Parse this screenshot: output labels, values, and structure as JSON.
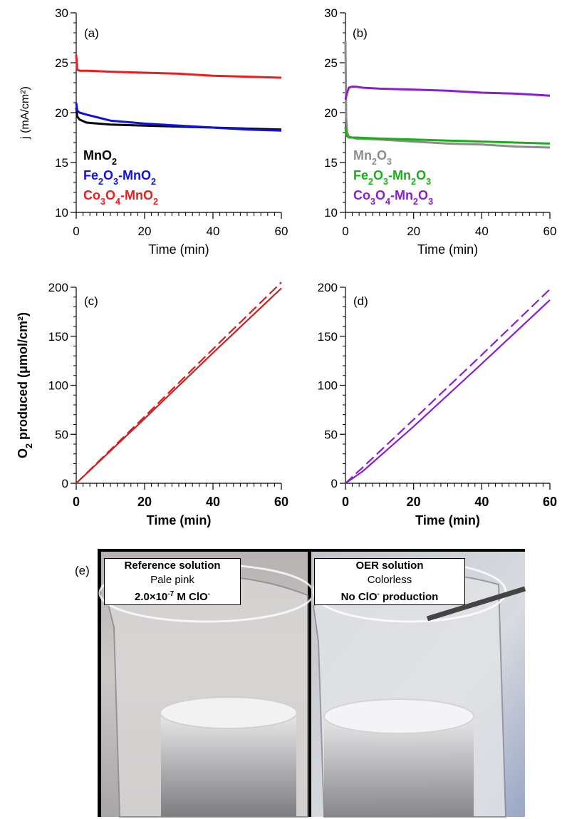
{
  "chart_data": [
    {
      "panel": "(a)",
      "type": "line",
      "xlabel": "Time (min)",
      "ylabel": "j (mA/cm²)",
      "xlim": [
        0,
        60
      ],
      "ylim": [
        10,
        30
      ],
      "xticks": [
        0,
        20,
        40,
        60
      ],
      "yticks": [
        10,
        15,
        20,
        25,
        30
      ],
      "legend_placement": "bottom-left",
      "series": [
        {
          "name": "MnO₂",
          "color": "#000000",
          "x": [
            0,
            0.3,
            1,
            3,
            10,
            20,
            30,
            40,
            50,
            60
          ],
          "y": [
            20.5,
            19.6,
            19.3,
            19.0,
            18.8,
            18.7,
            18.6,
            18.5,
            18.4,
            18.3
          ]
        },
        {
          "name": "Fe₂O₃-MnO₂",
          "color": "#1010e0",
          "x": [
            0,
            0.3,
            1,
            3,
            10,
            20,
            30,
            40,
            50,
            60
          ],
          "y": [
            21.0,
            20.2,
            20.0,
            19.8,
            19.2,
            18.9,
            18.7,
            18.5,
            18.3,
            18.2
          ]
        },
        {
          "name": "Co₃O₄-MnO₂",
          "color": "#ee1c1c",
          "x": [
            0,
            0.3,
            1,
            3,
            10,
            20,
            30,
            40,
            50,
            60
          ],
          "y": [
            25.8,
            24.3,
            24.2,
            24.2,
            24.1,
            24.0,
            23.9,
            23.7,
            23.6,
            23.5
          ]
        }
      ]
    },
    {
      "panel": "(b)",
      "type": "line",
      "xlabel": "Time (min)",
      "ylabel": "",
      "xlim": [
        0,
        60
      ],
      "ylim": [
        10,
        30
      ],
      "xticks": [
        0,
        20,
        40,
        60
      ],
      "yticks": [
        10,
        15,
        20,
        25,
        30
      ],
      "legend_placement": "bottom-left",
      "series": [
        {
          "name": "Mn₂O₃",
          "color": "#8c8c8c",
          "x": [
            0,
            0.2,
            0.5,
            1,
            3,
            10,
            20,
            30,
            40,
            50,
            60
          ],
          "y": [
            27.2,
            19.5,
            18.0,
            17.6,
            17.4,
            17.3,
            17.1,
            16.9,
            16.8,
            16.6,
            16.5
          ]
        },
        {
          "name": "Fe₂O₃-Mn₂O₃",
          "color": "#18b018",
          "x": [
            0,
            0.3,
            1,
            3,
            10,
            20,
            30,
            40,
            50,
            60
          ],
          "y": [
            18.5,
            17.7,
            17.5,
            17.5,
            17.4,
            17.3,
            17.2,
            17.1,
            17.0,
            16.9
          ]
        },
        {
          "name": "Co₃O₄-Mn₂O₃",
          "color": "#8a20cc",
          "x": [
            0,
            0.5,
            1,
            2,
            3,
            5,
            10,
            20,
            30,
            40,
            50,
            60
          ],
          "y": [
            21.3,
            22.0,
            22.5,
            22.6,
            22.6,
            22.5,
            22.4,
            22.3,
            22.2,
            22.0,
            21.9,
            21.7
          ]
        }
      ]
    },
    {
      "panel": "(c)",
      "type": "line",
      "xlabel": "Time (min)",
      "ylabel": "O₂ produced (μmol/cm²)",
      "xlim": [
        0,
        60
      ],
      "ylim": [
        0,
        200
      ],
      "xticks": [
        0,
        20,
        40,
        60
      ],
      "yticks": [
        0,
        50,
        100,
        150,
        200
      ],
      "series": [
        {
          "color": "#cc2222",
          "style": "solid",
          "x": [
            0,
            20,
            40,
            60
          ],
          "y": [
            0,
            66,
            133,
            199
          ]
        },
        {
          "color": "#cc2222",
          "style": "dashed",
          "x": [
            0,
            20,
            40,
            60
          ],
          "y": [
            0,
            68,
            137,
            205
          ]
        }
      ]
    },
    {
      "panel": "(d)",
      "type": "line",
      "xlabel": "Time (min)",
      "ylabel": "",
      "xlim": [
        0,
        60
      ],
      "ylim": [
        0,
        200
      ],
      "xticks": [
        0,
        20,
        40,
        60
      ],
      "yticks": [
        0,
        50,
        100,
        150,
        200
      ],
      "series": [
        {
          "color": "#8a20cc",
          "style": "solid",
          "x": [
            0,
            5,
            20,
            40,
            60
          ],
          "y": [
            0,
            12,
            58,
            122,
            187
          ]
        },
        {
          "color": "#8a20cc",
          "style": "dashed",
          "x": [
            0,
            5,
            20,
            40,
            60
          ],
          "y": [
            0,
            16,
            65,
            131,
            198
          ]
        }
      ]
    }
  ],
  "photo": {
    "panel": "(e)",
    "left": {
      "title": "Reference solution",
      "subtitle": "Pale pink",
      "note": "2.0×10",
      "note_sup": "-7",
      "note_tail": " M ClO",
      "note_sup2": "-"
    },
    "right": {
      "title": "OER solution",
      "subtitle": "Colorless",
      "note": "No ClO",
      "note_sup": "-",
      "note_tail": " production"
    }
  }
}
